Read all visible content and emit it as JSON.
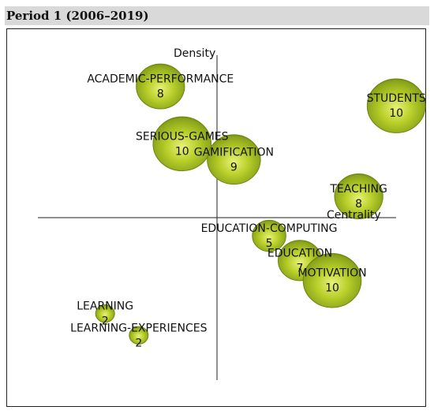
{
  "header": {
    "title": "Period 1 (2006–2019)"
  },
  "chart_data": {
    "type": "scatter",
    "title": "",
    "xlabel": "Centrality",
    "ylabel": "Density",
    "xlim": [
      0,
      1
    ],
    "ylim": [
      0,
      1
    ],
    "grid": false,
    "series": [
      {
        "points": [
          {
            "label": "ACADEMIC-PERFORMANCE",
            "value": 8,
            "x": 0.269,
            "y": 0.898
          },
          {
            "label": "STUDENTS",
            "value": 10,
            "x": 0.998,
            "y": 0.831
          },
          {
            "label": "SERIOUS-GAMES",
            "value": 10,
            "x": 0.336,
            "y": 0.7
          },
          {
            "label": "GAMIFICATION",
            "value": 9,
            "x": 0.496,
            "y": 0.646
          },
          {
            "label": "TEACHING",
            "value": 8,
            "x": 0.882,
            "y": 0.519
          },
          {
            "label": "EDUCATION-COMPUTING",
            "value": 5,
            "x": 0.605,
            "y": 0.383
          },
          {
            "label": "EDUCATION",
            "value": 7,
            "x": 0.7,
            "y": 0.298
          },
          {
            "label": "MOTIVATION",
            "value": 10,
            "x": 0.8,
            "y": 0.229
          },
          {
            "label": "LEARNING",
            "value": 2,
            "x": 0.098,
            "y": 0.115
          },
          {
            "label": "LEARNING-EXPERIENCES",
            "value": 2,
            "x": 0.202,
            "y": 0.04
          }
        ]
      }
    ]
  }
}
